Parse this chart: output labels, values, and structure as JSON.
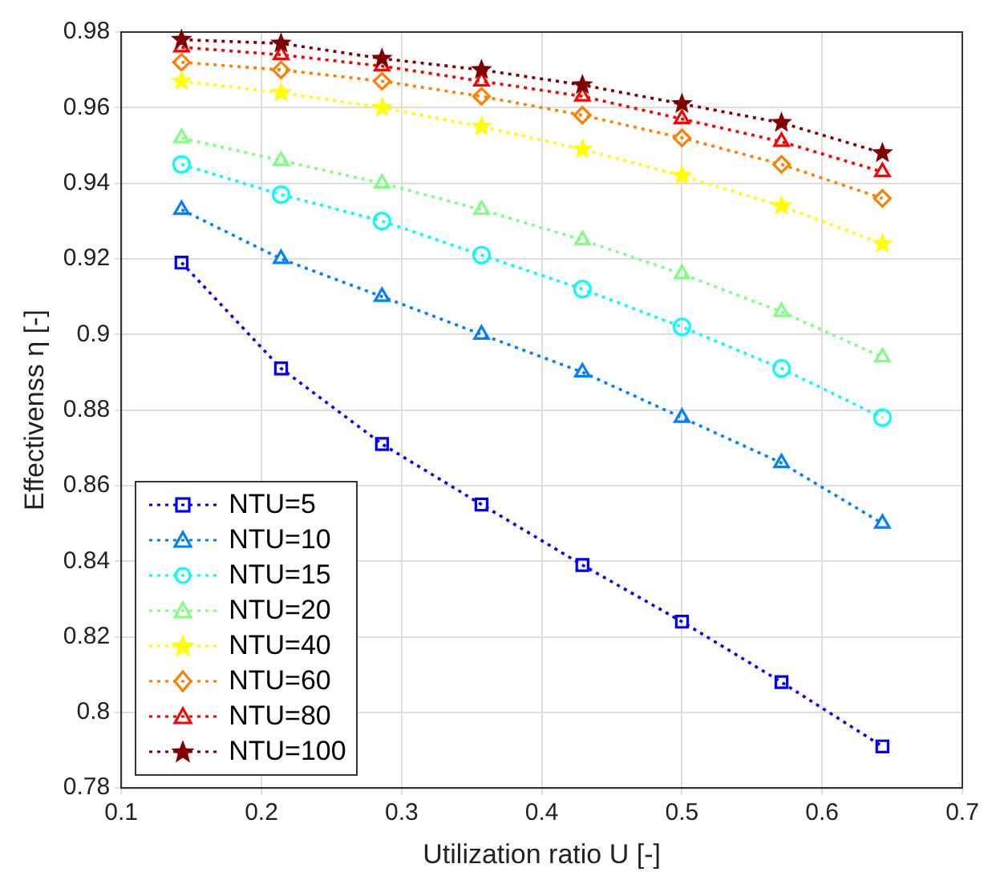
{
  "chart_data": {
    "type": "line",
    "xlabel": "Utilization ratio U [-]",
    "ylabel": "Effectivenss η [-]",
    "x": [
      0.143,
      0.214,
      0.286,
      0.357,
      0.429,
      0.5,
      0.571,
      0.643
    ],
    "xlim": [
      0.1,
      0.7
    ],
    "xticks": [
      0.1,
      0.2,
      0.3,
      0.4,
      0.5,
      0.6,
      0.7
    ],
    "ylim": [
      0.78,
      0.98
    ],
    "yticks": [
      0.78,
      0.8,
      0.82,
      0.84,
      0.86,
      0.88,
      0.9,
      0.92,
      0.94,
      0.96,
      0.98
    ],
    "grid": true,
    "legend": "bottom left",
    "line_style": "dotted",
    "series": [
      {
        "name": "NTU=5",
        "color": "#0000ff",
        "marker": "square",
        "values": [
          0.919,
          0.891,
          0.871,
          0.855,
          0.839,
          0.824,
          0.808,
          0.791
        ]
      },
      {
        "name": "NTU=10",
        "color": "#0080ff",
        "marker": "triangle",
        "values": [
          0.933,
          0.92,
          0.91,
          0.9,
          0.89,
          0.878,
          0.866,
          0.85
        ]
      },
      {
        "name": "NTU=15",
        "color": "#00ffff",
        "marker": "circle",
        "values": [
          0.945,
          0.937,
          0.93,
          0.921,
          0.912,
          0.902,
          0.891,
          0.878
        ]
      },
      {
        "name": "NTU=20",
        "color": "#80ff80",
        "marker": "triangle",
        "values": [
          0.952,
          0.946,
          0.94,
          0.933,
          0.925,
          0.916,
          0.906,
          0.894
        ]
      },
      {
        "name": "NTU=40",
        "color": "#ffff00",
        "marker": "star",
        "values": [
          0.967,
          0.964,
          0.96,
          0.955,
          0.949,
          0.942,
          0.934,
          0.924
        ]
      },
      {
        "name": "NTU=60",
        "color": "#ff8000",
        "marker": "diamond",
        "values": [
          0.972,
          0.97,
          0.967,
          0.963,
          0.958,
          0.952,
          0.945,
          0.936
        ]
      },
      {
        "name": "NTU=80",
        "color": "#ff0000",
        "marker": "triangle",
        "values": [
          0.976,
          0.974,
          0.971,
          0.967,
          0.963,
          0.957,
          0.951,
          0.943
        ]
      },
      {
        "name": "NTU=100",
        "color": "#800000",
        "marker": "star",
        "values": [
          0.978,
          0.977,
          0.973,
          0.97,
          0.966,
          0.961,
          0.956,
          0.948
        ]
      }
    ]
  }
}
